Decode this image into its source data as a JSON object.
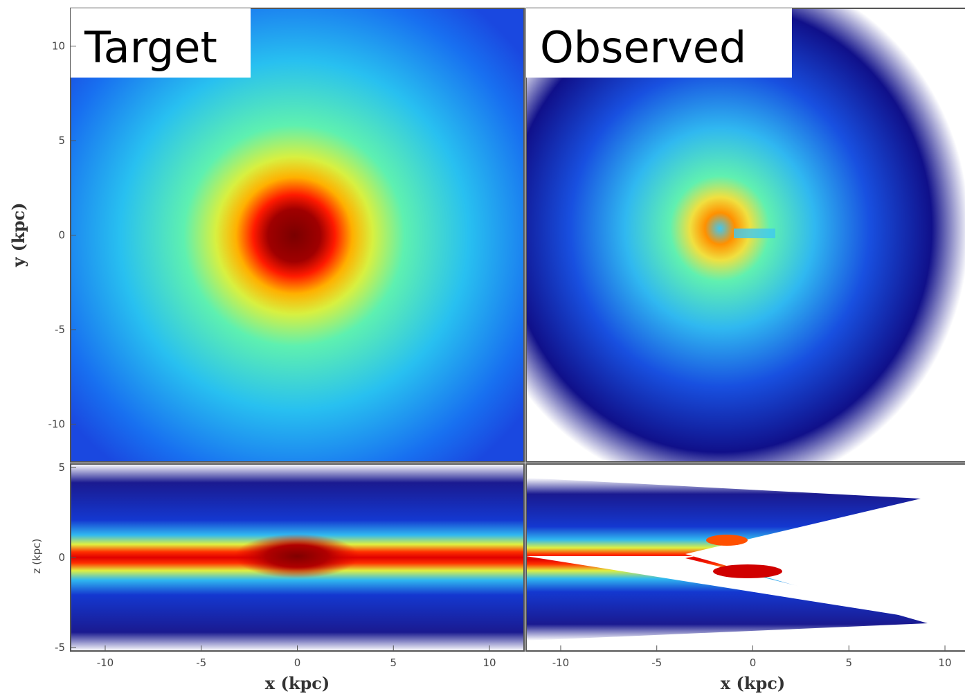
{
  "chart_data": [
    {
      "type": "density",
      "title": "Target",
      "ylabel": "y (kpc)",
      "xlim": [
        -11.8,
        11.8
      ],
      "ylim": [
        -12,
        12
      ],
      "yticks": [
        10,
        5,
        0,
        -5,
        -10
      ]
    },
    {
      "type": "density",
      "title": "Observed",
      "xlim": [
        -11.8,
        11.8
      ],
      "ylim": [
        -12,
        12
      ]
    },
    {
      "type": "density",
      "ylabel": "z (kpc)",
      "xlabel": "x (kpc)",
      "xlim": [
        -11.8,
        11.8
      ],
      "ylim": [
        -5.2,
        5.2
      ],
      "xticks": [
        -10,
        -5,
        0,
        5,
        10
      ],
      "yticks": [
        5,
        0,
        -5
      ]
    },
    {
      "type": "density",
      "xlabel": "x (kpc)",
      "xlim": [
        -11.8,
        11.8
      ],
      "ylim": [
        -5.2,
        5.2
      ],
      "xticks": [
        -10,
        -5,
        0,
        5,
        10
      ]
    }
  ]
}
